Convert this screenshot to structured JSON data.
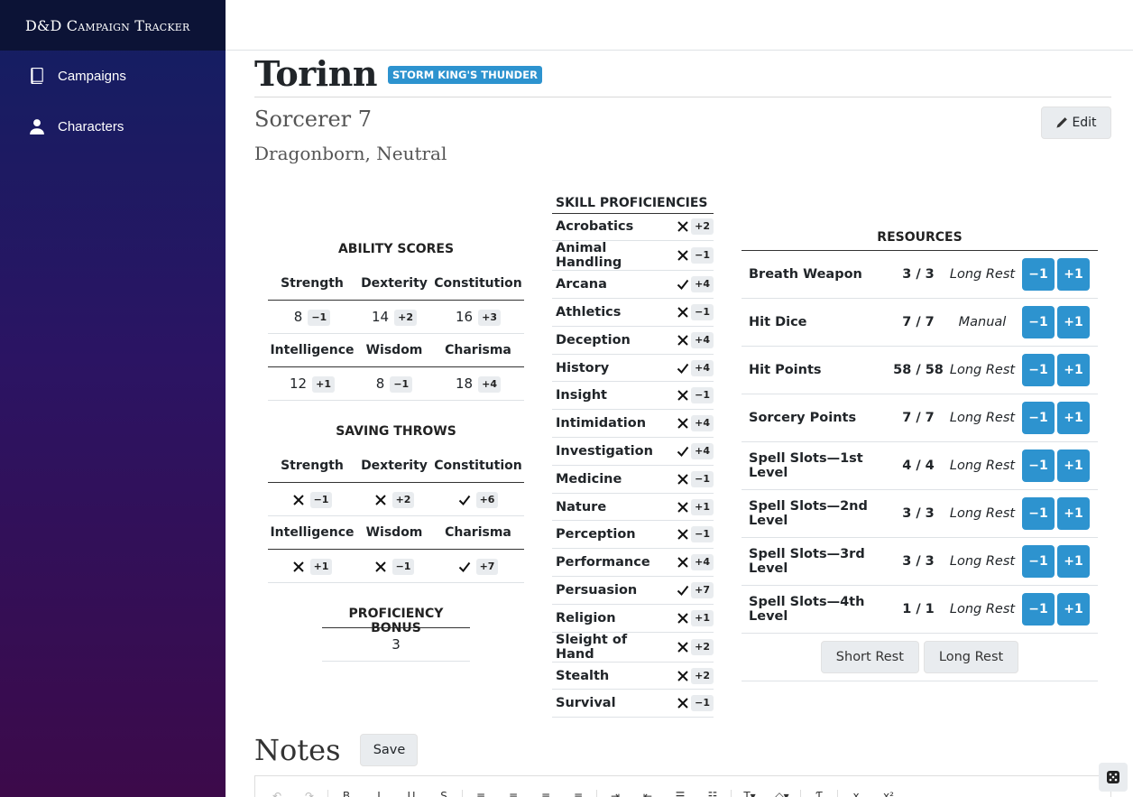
{
  "app": {
    "brand": "D&D Campaign Tracker"
  },
  "sidebar": {
    "items": [
      {
        "label": "Campaigns",
        "icon": "book-icon"
      },
      {
        "label": "Characters",
        "icon": "user-icon"
      }
    ]
  },
  "character": {
    "name": "Torinn",
    "campaign_badge": "STORM KING'S THUNDER",
    "class_level": "Sorcerer 7",
    "race_alignment": "Dragonborn, Neutral",
    "edit_label": "Edit"
  },
  "ability_scores": {
    "title": "ABILITY SCORES",
    "rows": [
      [
        {
          "name": "Strength",
          "score": "8",
          "mod": "−1"
        },
        {
          "name": "Dexterity",
          "score": "14",
          "mod": "+2"
        },
        {
          "name": "Constitution",
          "score": "16",
          "mod": "+3"
        }
      ],
      [
        {
          "name": "Intelligence",
          "score": "12",
          "mod": "+1"
        },
        {
          "name": "Wisdom",
          "score": "8",
          "mod": "−1"
        },
        {
          "name": "Charisma",
          "score": "18",
          "mod": "+4"
        }
      ]
    ]
  },
  "saving_throws": {
    "title": "SAVING THROWS",
    "rows": [
      [
        {
          "name": "Strength",
          "proficient": false,
          "mod": "−1"
        },
        {
          "name": "Dexterity",
          "proficient": false,
          "mod": "+2"
        },
        {
          "name": "Constitution",
          "proficient": true,
          "mod": "+6"
        }
      ],
      [
        {
          "name": "Intelligence",
          "proficient": false,
          "mod": "+1"
        },
        {
          "name": "Wisdom",
          "proficient": false,
          "mod": "−1"
        },
        {
          "name": "Charisma",
          "proficient": true,
          "mod": "+7"
        }
      ]
    ]
  },
  "proficiency": {
    "title": "PROFICIENCY BONUS",
    "value": "3"
  },
  "skills": {
    "title": "SKILL PROFICIENCIES",
    "items": [
      {
        "name": "Acrobatics",
        "proficient": false,
        "mod": "+2"
      },
      {
        "name": "Animal Handling",
        "proficient": false,
        "mod": "−1"
      },
      {
        "name": "Arcana",
        "proficient": true,
        "mod": "+4"
      },
      {
        "name": "Athletics",
        "proficient": false,
        "mod": "−1"
      },
      {
        "name": "Deception",
        "proficient": false,
        "mod": "+4"
      },
      {
        "name": "History",
        "proficient": true,
        "mod": "+4"
      },
      {
        "name": "Insight",
        "proficient": false,
        "mod": "−1"
      },
      {
        "name": "Intimidation",
        "proficient": false,
        "mod": "+4"
      },
      {
        "name": "Investigation",
        "proficient": true,
        "mod": "+4"
      },
      {
        "name": "Medicine",
        "proficient": false,
        "mod": "−1"
      },
      {
        "name": "Nature",
        "proficient": false,
        "mod": "+1"
      },
      {
        "name": "Perception",
        "proficient": false,
        "mod": "−1"
      },
      {
        "name": "Performance",
        "proficient": false,
        "mod": "+4"
      },
      {
        "name": "Persuasion",
        "proficient": true,
        "mod": "+7"
      },
      {
        "name": "Religion",
        "proficient": false,
        "mod": "+1"
      },
      {
        "name": "Sleight of Hand",
        "proficient": false,
        "mod": "+2"
      },
      {
        "name": "Stealth",
        "proficient": false,
        "mod": "+2"
      },
      {
        "name": "Survival",
        "proficient": false,
        "mod": "−1"
      }
    ]
  },
  "resources": {
    "title": "RESOURCES",
    "decrement_label": "−1",
    "increment_label": "+1",
    "items": [
      {
        "name": "Breath Weapon",
        "value": "3 / 3",
        "reset": "Long Rest"
      },
      {
        "name": "Hit Dice",
        "value": "7 / 7",
        "reset": "Manual"
      },
      {
        "name": "Hit Points",
        "value": "58 / 58",
        "reset": "Long Rest"
      },
      {
        "name": "Sorcery Points",
        "value": "7 / 7",
        "reset": "Long Rest"
      },
      {
        "name": "Spell Slots—1st Level",
        "value": "4 / 4",
        "reset": "Long Rest"
      },
      {
        "name": "Spell Slots—2nd Level",
        "value": "3 / 3",
        "reset": "Long Rest"
      },
      {
        "name": "Spell Slots—3rd Level",
        "value": "3 / 3",
        "reset": "Long Rest"
      },
      {
        "name": "Spell Slots—4th Level",
        "value": "1 / 1",
        "reset": "Long Rest"
      }
    ],
    "short_rest_label": "Short Rest",
    "long_rest_label": "Long Rest"
  },
  "notes": {
    "title": "Notes",
    "save_label": "Save",
    "toolbar": [
      {
        "label": "↶",
        "name": "undo-icon",
        "disabled": true
      },
      {
        "label": "↷",
        "name": "redo-icon",
        "disabled": true
      },
      {
        "sep": true
      },
      {
        "label": "B",
        "name": "bold-icon"
      },
      {
        "label": "I",
        "name": "italic-icon"
      },
      {
        "label": "U",
        "name": "underline-icon"
      },
      {
        "label": "S",
        "name": "strikethrough-icon"
      },
      {
        "sep": true
      },
      {
        "label": "≡",
        "name": "align-left-icon"
      },
      {
        "label": "≡",
        "name": "align-center-icon"
      },
      {
        "label": "≡",
        "name": "align-right-icon"
      },
      {
        "label": "≡",
        "name": "align-justify-icon"
      },
      {
        "sep": true
      },
      {
        "label": "⇥",
        "name": "indent-icon"
      },
      {
        "label": "⇤",
        "name": "outdent-icon"
      },
      {
        "label": "☰",
        "name": "bullet-list-icon"
      },
      {
        "label": "☷",
        "name": "numbered-list-icon"
      },
      {
        "sep": true
      },
      {
        "label": "T▾",
        "name": "text-style-icon"
      },
      {
        "label": "◇▾",
        "name": "fill-color-icon"
      },
      {
        "sep": true
      },
      {
        "label": "Ƭ",
        "name": "clear-format-icon"
      },
      {
        "sep": true
      },
      {
        "label": "x",
        "name": "subscript-icon"
      },
      {
        "label": "x²",
        "name": "superscript-icon"
      }
    ]
  },
  "colors": {
    "accent": "#2d93cf",
    "sidebar_top": "#121f62",
    "sidebar_bottom": "#3c0a4a"
  }
}
